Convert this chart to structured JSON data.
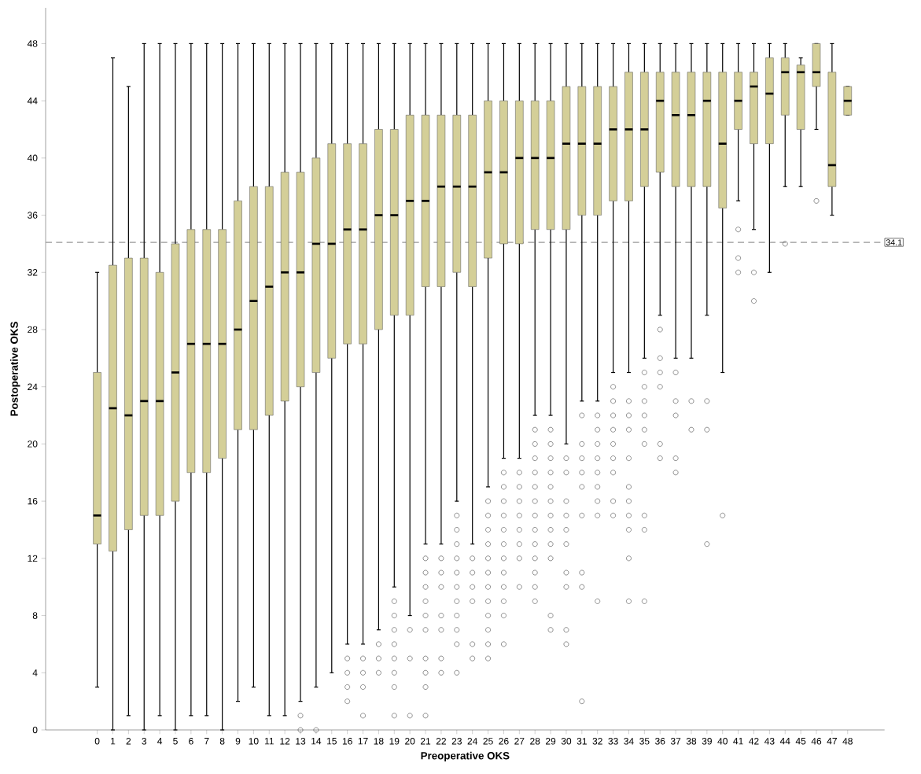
{
  "chart_data": {
    "type": "box",
    "xlabel": "Preoperative OKS",
    "ylabel": "Postoperative OKS",
    "color": "#d4cf98",
    "categories": [
      "0",
      "1",
      "2",
      "3",
      "4",
      "5",
      "6",
      "7",
      "8",
      "9",
      "10",
      "11",
      "12",
      "13",
      "14",
      "15",
      "16",
      "17",
      "18",
      "19",
      "20",
      "21",
      "22",
      "23",
      "24",
      "25",
      "26",
      "27",
      "28",
      "29",
      "30",
      "31",
      "32",
      "33",
      "34",
      "35",
      "36",
      "37",
      "38",
      "39",
      "40",
      "41",
      "42",
      "43",
      "44",
      "45",
      "46",
      "47",
      "48"
    ],
    "ylim": [
      0,
      50.5
    ],
    "yticks": [
      0,
      4,
      8,
      12,
      16,
      20,
      24,
      28,
      32,
      36,
      40,
      44,
      48
    ],
    "ref_lines": [
      {
        "axis": "y",
        "value": 34.1,
        "label": "34.1",
        "color": "#999999",
        "line_style": "dashed"
      }
    ],
    "boxes": [
      {
        "low": 3,
        "q1": 13,
        "median": 15,
        "q3": 25,
        "high": 32
      },
      {
        "low": 0,
        "q1": 12.5,
        "median": 22.5,
        "q3": 32.5,
        "high": 47
      },
      {
        "low": 1,
        "q1": 14,
        "median": 22,
        "q3": 33,
        "high": 45
      },
      {
        "low": 0,
        "q1": 15,
        "median": 23,
        "q3": 33,
        "high": 48
      },
      {
        "low": 1,
        "q1": 15,
        "median": 23,
        "q3": 32,
        "high": 48
      },
      {
        "low": 0,
        "q1": 16,
        "median": 25,
        "q3": 34,
        "high": 48
      },
      {
        "low": 1,
        "q1": 18,
        "median": 27,
        "q3": 35,
        "high": 48
      },
      {
        "low": 1,
        "q1": 18,
        "median": 27,
        "q3": 35,
        "high": 48
      },
      {
        "low": 0,
        "q1": 19,
        "median": 27,
        "q3": 35,
        "high": 48
      },
      {
        "low": 2,
        "q1": 21,
        "median": 28,
        "q3": 37,
        "high": 48
      },
      {
        "low": 3,
        "q1": 21,
        "median": 30,
        "q3": 38,
        "high": 48
      },
      {
        "low": 1,
        "q1": 22,
        "median": 31,
        "q3": 38,
        "high": 48
      },
      {
        "low": 1,
        "q1": 23,
        "median": 32,
        "q3": 39,
        "high": 48
      },
      {
        "low": 2,
        "q1": 24,
        "median": 32,
        "q3": 39,
        "high": 48,
        "outliers": [
          1,
          0
        ]
      },
      {
        "low": 3,
        "q1": 25,
        "median": 34,
        "q3": 40,
        "high": 48,
        "outliers": [
          0
        ]
      },
      {
        "low": 4,
        "q1": 26,
        "median": 34,
        "q3": 41,
        "high": 48
      },
      {
        "low": 6,
        "q1": 27,
        "median": 35,
        "q3": 41,
        "high": 48,
        "outliers": [
          5,
          4,
          3,
          2
        ]
      },
      {
        "low": 6,
        "q1": 27,
        "median": 35,
        "q3": 41,
        "high": 48,
        "outliers": [
          5,
          4,
          3,
          1
        ]
      },
      {
        "low": 7,
        "q1": 28,
        "median": 36,
        "q3": 42,
        "high": 48,
        "outliers": [
          6,
          5,
          4
        ]
      },
      {
        "low": 10,
        "q1": 29,
        "median": 36,
        "q3": 42,
        "high": 48,
        "outliers": [
          9,
          8,
          7,
          6,
          5,
          4,
          3,
          1
        ]
      },
      {
        "low": 8,
        "q1": 29,
        "median": 37,
        "q3": 43,
        "high": 48,
        "outliers": [
          7,
          5,
          1
        ]
      },
      {
        "low": 13,
        "q1": 31,
        "median": 37,
        "q3": 43,
        "high": 48,
        "outliers": [
          12,
          11,
          10,
          9,
          8,
          7,
          5,
          4,
          3,
          1
        ]
      },
      {
        "low": 13,
        "q1": 31,
        "median": 38,
        "q3": 43,
        "high": 48,
        "outliers": [
          12,
          11,
          10,
          8,
          7,
          5,
          4
        ]
      },
      {
        "low": 16,
        "q1": 32,
        "median": 38,
        "q3": 43,
        "high": 48,
        "outliers": [
          15,
          14,
          13,
          12,
          11,
          10,
          9,
          8,
          7,
          6,
          4
        ]
      },
      {
        "low": 13,
        "q1": 31,
        "median": 38,
        "q3": 43,
        "high": 48,
        "outliers": [
          12,
          11,
          10,
          9,
          6,
          5
        ]
      },
      {
        "low": 17,
        "q1": 33,
        "median": 39,
        "q3": 44,
        "high": 48,
        "outliers": [
          16,
          15,
          14,
          13,
          12,
          11,
          10,
          9,
          8,
          7,
          6,
          5
        ]
      },
      {
        "low": 19,
        "q1": 34,
        "median": 39,
        "q3": 44,
        "high": 48,
        "outliers": [
          18,
          17,
          16,
          15,
          14,
          13,
          12,
          11,
          10,
          9,
          8,
          6
        ]
      },
      {
        "low": 19,
        "q1": 34,
        "median": 40,
        "q3": 44,
        "high": 48,
        "outliers": [
          18,
          17,
          16,
          15,
          14,
          13,
          12,
          10
        ]
      },
      {
        "low": 22,
        "q1": 35,
        "median": 40,
        "q3": 44,
        "high": 48,
        "outliers": [
          21,
          20,
          19,
          18,
          17,
          16,
          15,
          14,
          13,
          12,
          11,
          10,
          9
        ]
      },
      {
        "low": 22,
        "q1": 35,
        "median": 40,
        "q3": 44,
        "high": 48,
        "outliers": [
          21,
          20,
          19,
          18,
          17,
          16,
          15,
          14,
          13,
          12,
          8,
          7
        ]
      },
      {
        "low": 20,
        "q1": 35,
        "median": 41,
        "q3": 45,
        "high": 48,
        "outliers": [
          19,
          18,
          16,
          15,
          14,
          13,
          11,
          10,
          7,
          6
        ]
      },
      {
        "low": 23,
        "q1": 36,
        "median": 41,
        "q3": 45,
        "high": 48,
        "outliers": [
          22,
          20,
          19,
          18,
          17,
          15,
          11,
          10,
          2
        ]
      },
      {
        "low": 23,
        "q1": 36,
        "median": 41,
        "q3": 45,
        "high": 48,
        "outliers": [
          22,
          21,
          20,
          19,
          18,
          17,
          16,
          15,
          9
        ]
      },
      {
        "low": 25,
        "q1": 37,
        "median": 42,
        "q3": 45,
        "high": 48,
        "outliers": [
          24,
          23,
          22,
          21,
          20,
          19,
          18,
          16,
          15
        ]
      },
      {
        "low": 25,
        "q1": 37,
        "median": 42,
        "q3": 46,
        "high": 48,
        "outliers": [
          23,
          22,
          21,
          19,
          17,
          16,
          15,
          14,
          12,
          9
        ]
      },
      {
        "low": 26,
        "q1": 38,
        "median": 42,
        "q3": 46,
        "high": 48,
        "outliers": [
          25,
          24,
          23,
          22,
          21,
          20,
          15,
          14,
          9
        ]
      },
      {
        "low": 29,
        "q1": 39,
        "median": 44,
        "q3": 46,
        "high": 48,
        "outliers": [
          28,
          26,
          25,
          24,
          20,
          19
        ]
      },
      {
        "low": 26,
        "q1": 38,
        "median": 43,
        "q3": 46,
        "high": 48,
        "outliers": [
          25,
          23,
          22,
          19,
          18
        ]
      },
      {
        "low": 26,
        "q1": 38,
        "median": 43,
        "q3": 46,
        "high": 48,
        "outliers": [
          23,
          21
        ]
      },
      {
        "low": 29,
        "q1": 38,
        "median": 44,
        "q3": 46,
        "high": 48,
        "outliers": [
          23,
          21,
          13
        ]
      },
      {
        "low": 25,
        "q1": 36.5,
        "median": 41,
        "q3": 46,
        "high": 48,
        "outliers": [
          15
        ]
      },
      {
        "low": 37,
        "q1": 42,
        "median": 44,
        "q3": 46,
        "high": 48,
        "outliers": [
          35,
          33,
          32
        ]
      },
      {
        "low": 35,
        "q1": 41,
        "median": 45,
        "q3": 46,
        "high": 48,
        "outliers": [
          32,
          30
        ]
      },
      {
        "low": 32,
        "q1": 41,
        "median": 44.5,
        "q3": 47,
        "high": 48
      },
      {
        "low": 38,
        "q1": 43,
        "median": 46,
        "q3": 47,
        "high": 48,
        "outliers": [
          34
        ]
      },
      {
        "low": 38,
        "q1": 42,
        "median": 46,
        "q3": 46.5,
        "high": 47
      },
      {
        "low": 42,
        "q1": 45,
        "median": 46,
        "q3": 48,
        "high": 48,
        "outliers": [
          37
        ]
      },
      {
        "low": 36,
        "q1": 38,
        "median": 39.5,
        "q3": 46,
        "high": 48
      },
      {
        "low": 43,
        "q1": 43,
        "median": 44,
        "q3": 45,
        "high": 45
      }
    ]
  }
}
